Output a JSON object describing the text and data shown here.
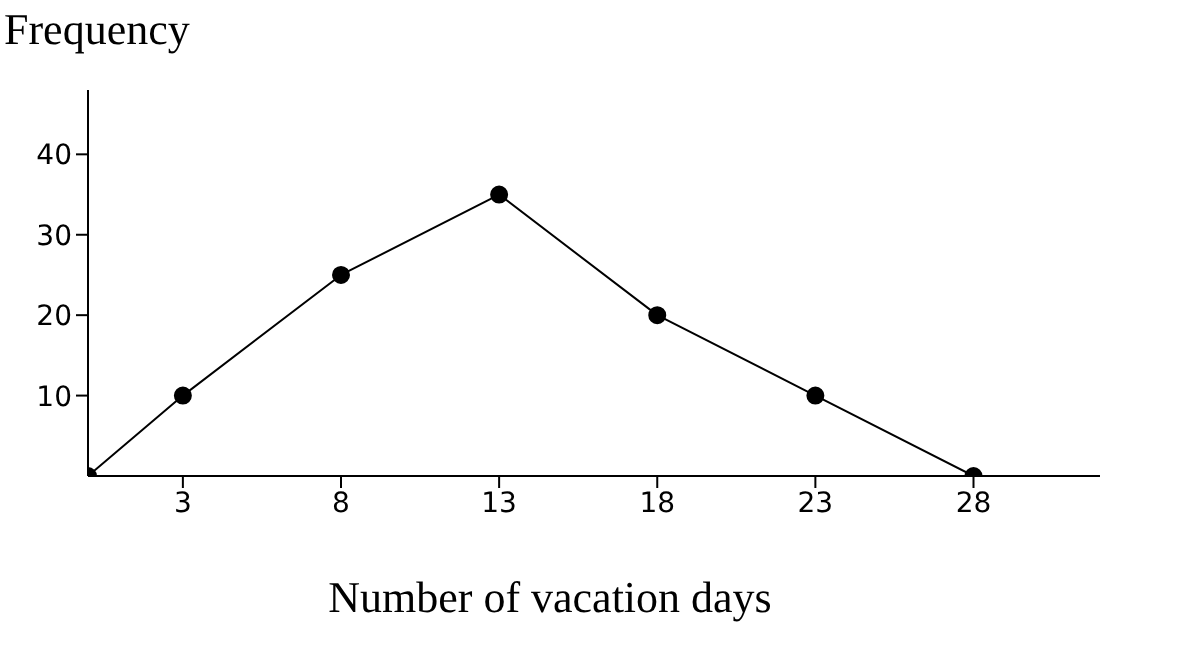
{
  "chart_data": {
    "type": "line",
    "xlabel": "Number of vacation days",
    "ylabel": "Frequency",
    "x": [
      0,
      3,
      8,
      13,
      18,
      23,
      28
    ],
    "series": [
      {
        "color": "#000000",
        "values": [
          0,
          10,
          25,
          35,
          20,
          10,
          0
        ]
      }
    ],
    "xlim": [
      0,
      32
    ],
    "xticks": [
      3,
      8,
      13,
      18,
      23,
      28
    ],
    "ylim": [
      0,
      48
    ],
    "yticks": [
      10,
      20,
      30,
      40
    ],
    "marker": "circle",
    "line_style": "solid",
    "grid": false,
    "legend": false
  }
}
